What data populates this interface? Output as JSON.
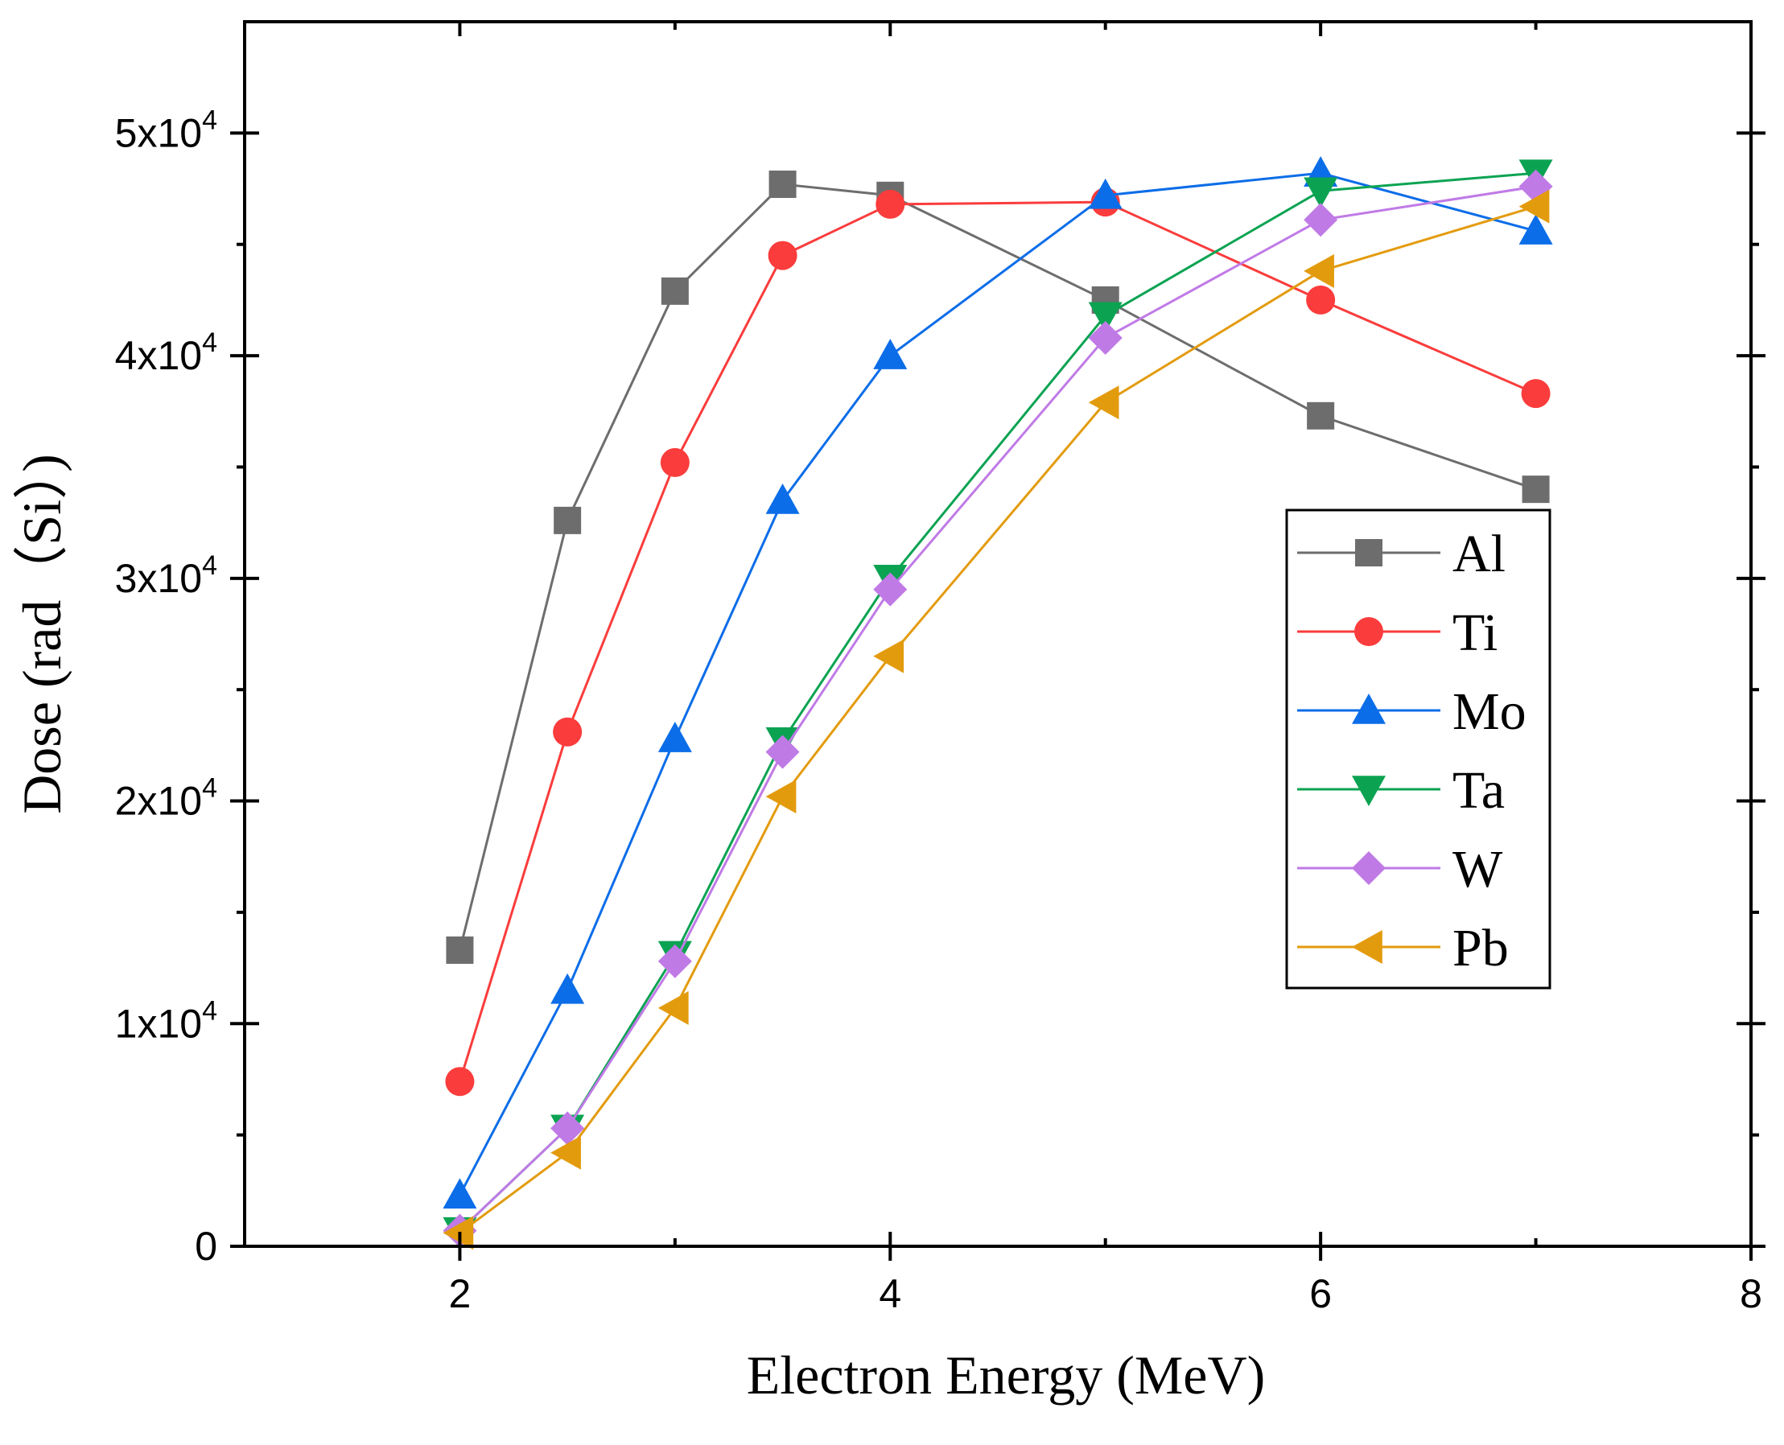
{
  "chart_data": {
    "type": "line",
    "title": "",
    "xlabel": "Electron Energy (MeV)",
    "ylabel": "Dose (rad（Si）)",
    "xlim": [
      1,
      8
    ],
    "ylim": [
      0,
      55000
    ],
    "x_ticks": [
      {
        "value": 2,
        "label": "2"
      },
      {
        "value": 4,
        "label": "4"
      },
      {
        "value": 6,
        "label": "6"
      },
      {
        "value": 8,
        "label": "8"
      }
    ],
    "x_minor_ticks": [
      1,
      3,
      5,
      7
    ],
    "y_ticks": [
      {
        "value": 0,
        "label": "0",
        "exp": ""
      },
      {
        "value": 10000,
        "label": "1x10",
        "exp": "4"
      },
      {
        "value": 20000,
        "label": "2x10",
        "exp": "4"
      },
      {
        "value": 30000,
        "label": "3x10",
        "exp": "4"
      },
      {
        "value": 40000,
        "label": "4x10",
        "exp": "4"
      },
      {
        "value": 50000,
        "label": "5x10",
        "exp": "4"
      }
    ],
    "y_minor_ticks": [
      5000,
      15000,
      25000,
      35000,
      45000
    ],
    "grid": false,
    "legend_position": "right",
    "x": [
      2,
      2.5,
      3,
      3.5,
      4,
      5,
      6,
      7
    ],
    "series": [
      {
        "name": "Al",
        "marker": "square",
        "color": "#6d6d6d",
        "values": [
          13300,
          32600,
          42900,
          47700,
          47200,
          42500,
          37300,
          34000
        ]
      },
      {
        "name": "Ti",
        "marker": "circle",
        "color": "#fa3c3c",
        "values": [
          7400,
          23100,
          35200,
          44500,
          46800,
          46900,
          42500,
          38300
        ]
      },
      {
        "name": "Mo",
        "marker": "triangle-up",
        "color": "#0c6de8",
        "values": [
          2300,
          11500,
          22800,
          33500,
          40000,
          47200,
          48200,
          45600
        ]
      },
      {
        "name": "Ta",
        "marker": "triangle-down",
        "color": "#0ba352",
        "values": [
          700,
          5300,
          13100,
          22700,
          30000,
          41800,
          47400,
          48200
        ]
      },
      {
        "name": "W",
        "marker": "diamond",
        "color": "#c07ae6",
        "values": [
          700,
          5300,
          12800,
          22200,
          29500,
          40800,
          46100,
          47600
        ]
      },
      {
        "name": "Pb",
        "marker": "triangle-left",
        "color": "#e39b0e",
        "values": [
          600,
          4200,
          10700,
          20200,
          26500,
          37900,
          43800,
          46700
        ]
      }
    ]
  }
}
